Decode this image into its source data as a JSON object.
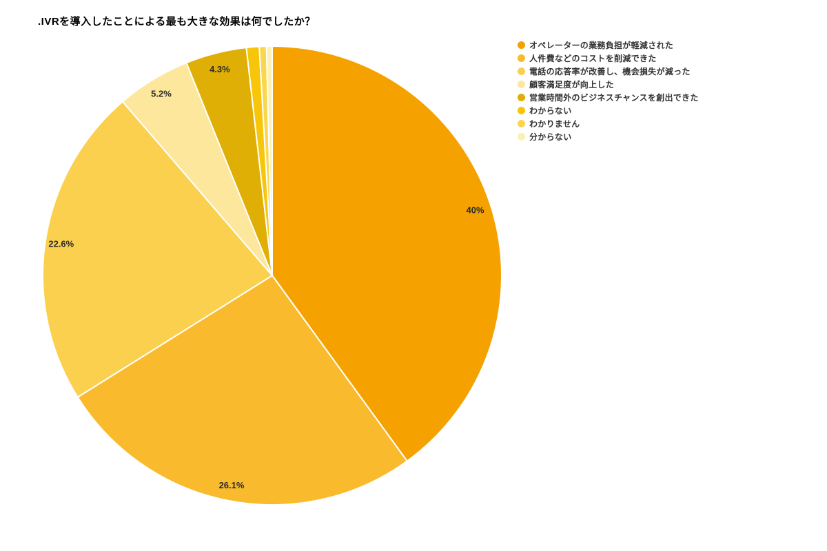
{
  "title": ".IVRを導入したことによる最も大きな効果は何でしたか？",
  "colors": {
    "background": "#ffffff",
    "title_text": "#000000",
    "legend_text": "#333333",
    "slice_label_text": "#2b2b2b",
    "slice_border": "#ffffff"
  },
  "chart_data": {
    "type": "pie",
    "title": ".IVRを導入したことによる最も大きな効果は何でしたか？",
    "start_angle_deg": 0,
    "direction": "clockwise",
    "legend_position": "right",
    "slices": [
      {
        "label": "オペレーターの業務負担が軽減された",
        "value": 40.0,
        "display": "40%",
        "color": "#F5A201"
      },
      {
        "label": "人件費などのコストを削減できた",
        "value": 26.1,
        "display": "26.1%",
        "color": "#F9BB2D"
      },
      {
        "label": "電話の応答率が改善し、機会損失が減った",
        "value": 22.6,
        "display": "22.6%",
        "color": "#FBD04F"
      },
      {
        "label": "顧客満足度が向上した",
        "value": 5.2,
        "display": "5.2%",
        "color": "#FCE79C"
      },
      {
        "label": "営業時間外のビジネスチャンスを創出できた",
        "value": 4.3,
        "display": "4.3%",
        "color": "#DFAF05"
      },
      {
        "label": "わからない",
        "value": 0.9,
        "display": "",
        "color": "#F7C60B"
      },
      {
        "label": "わかりません",
        "value": 0.5,
        "display": "",
        "color": "#F9D64E"
      },
      {
        "label": "分からない",
        "value": 0.4,
        "display": "",
        "color": "#FCF0B2"
      }
    ]
  }
}
